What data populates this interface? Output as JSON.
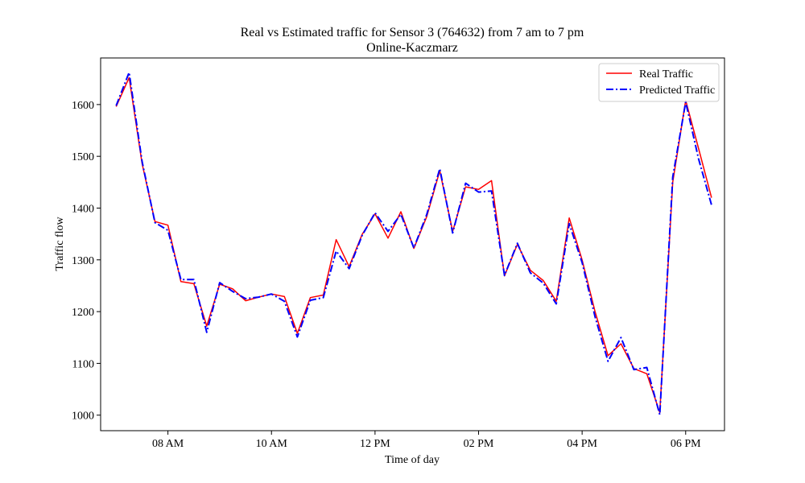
{
  "chart_data": {
    "type": "line",
    "title": "Real vs Estimated traffic for Sensor 3 (764632) from 7 am to 7 pm",
    "subtitle": "Online-Kaczmarz",
    "xlabel": "Time of day",
    "ylabel": "Traffic flow",
    "x_unit": "hour of day",
    "xlim": [
      6.7,
      18.75
    ],
    "ylim": [
      970,
      1690
    ],
    "xticks": [
      {
        "value": 8,
        "label": "08 AM"
      },
      {
        "value": 10,
        "label": "10 AM"
      },
      {
        "value": 12,
        "label": "12 PM"
      },
      {
        "value": 14,
        "label": "02 PM"
      },
      {
        "value": 16,
        "label": "04 PM"
      },
      {
        "value": 18,
        "label": "06 PM"
      }
    ],
    "yticks": [
      {
        "value": 1000,
        "label": "1000"
      },
      {
        "value": 1100,
        "label": "1100"
      },
      {
        "value": 1200,
        "label": "1200"
      },
      {
        "value": 1300,
        "label": "1300"
      },
      {
        "value": 1400,
        "label": "1400"
      },
      {
        "value": 1500,
        "label": "1500"
      },
      {
        "value": 1600,
        "label": "1600"
      }
    ],
    "grid": false,
    "legend_position": "top-right",
    "x": [
      7.0,
      7.25,
      7.5,
      7.75,
      8.0,
      8.25,
      8.5,
      8.75,
      9.0,
      9.25,
      9.5,
      9.75,
      10.0,
      10.25,
      10.5,
      10.75,
      11.0,
      11.25,
      11.5,
      11.75,
      12.0,
      12.25,
      12.5,
      12.75,
      13.0,
      13.25,
      13.5,
      13.75,
      14.0,
      14.25,
      14.5,
      14.75,
      15.0,
      15.25,
      15.5,
      15.75,
      16.0,
      16.25,
      16.5,
      16.75,
      17.0,
      17.25,
      17.5,
      17.75,
      18.0,
      18.25,
      18.5
    ],
    "series": [
      {
        "name": "Real Traffic",
        "color": "#ff0000",
        "style": "solid",
        "values": [
          1596,
          1652,
          1486,
          1374,
          1367,
          1258,
          1254,
          1172,
          1253,
          1244,
          1221,
          1228,
          1234,
          1229,
          1158,
          1227,
          1232,
          1339,
          1287,
          1349,
          1389,
          1342,
          1393,
          1322,
          1384,
          1472,
          1355,
          1441,
          1436,
          1453,
          1269,
          1330,
          1280,
          1260,
          1220,
          1381,
          1300,
          1200,
          1115,
          1138,
          1090,
          1080,
          1005,
          1450,
          1608,
          1515,
          1420
        ]
      },
      {
        "name": "Predicted Traffic",
        "color": "#0000ff",
        "style": "dashdot",
        "values": [
          1598,
          1662,
          1490,
          1372,
          1357,
          1262,
          1262,
          1160,
          1256,
          1239,
          1225,
          1228,
          1234,
          1220,
          1151,
          1222,
          1227,
          1317,
          1283,
          1347,
          1391,
          1355,
          1388,
          1323,
          1388,
          1476,
          1352,
          1448,
          1431,
          1433,
          1270,
          1332,
          1275,
          1255,
          1215,
          1370,
          1295,
          1190,
          1104,
          1150,
          1088,
          1092,
          1001,
          1460,
          1605,
          1495,
          1406
        ]
      }
    ]
  }
}
